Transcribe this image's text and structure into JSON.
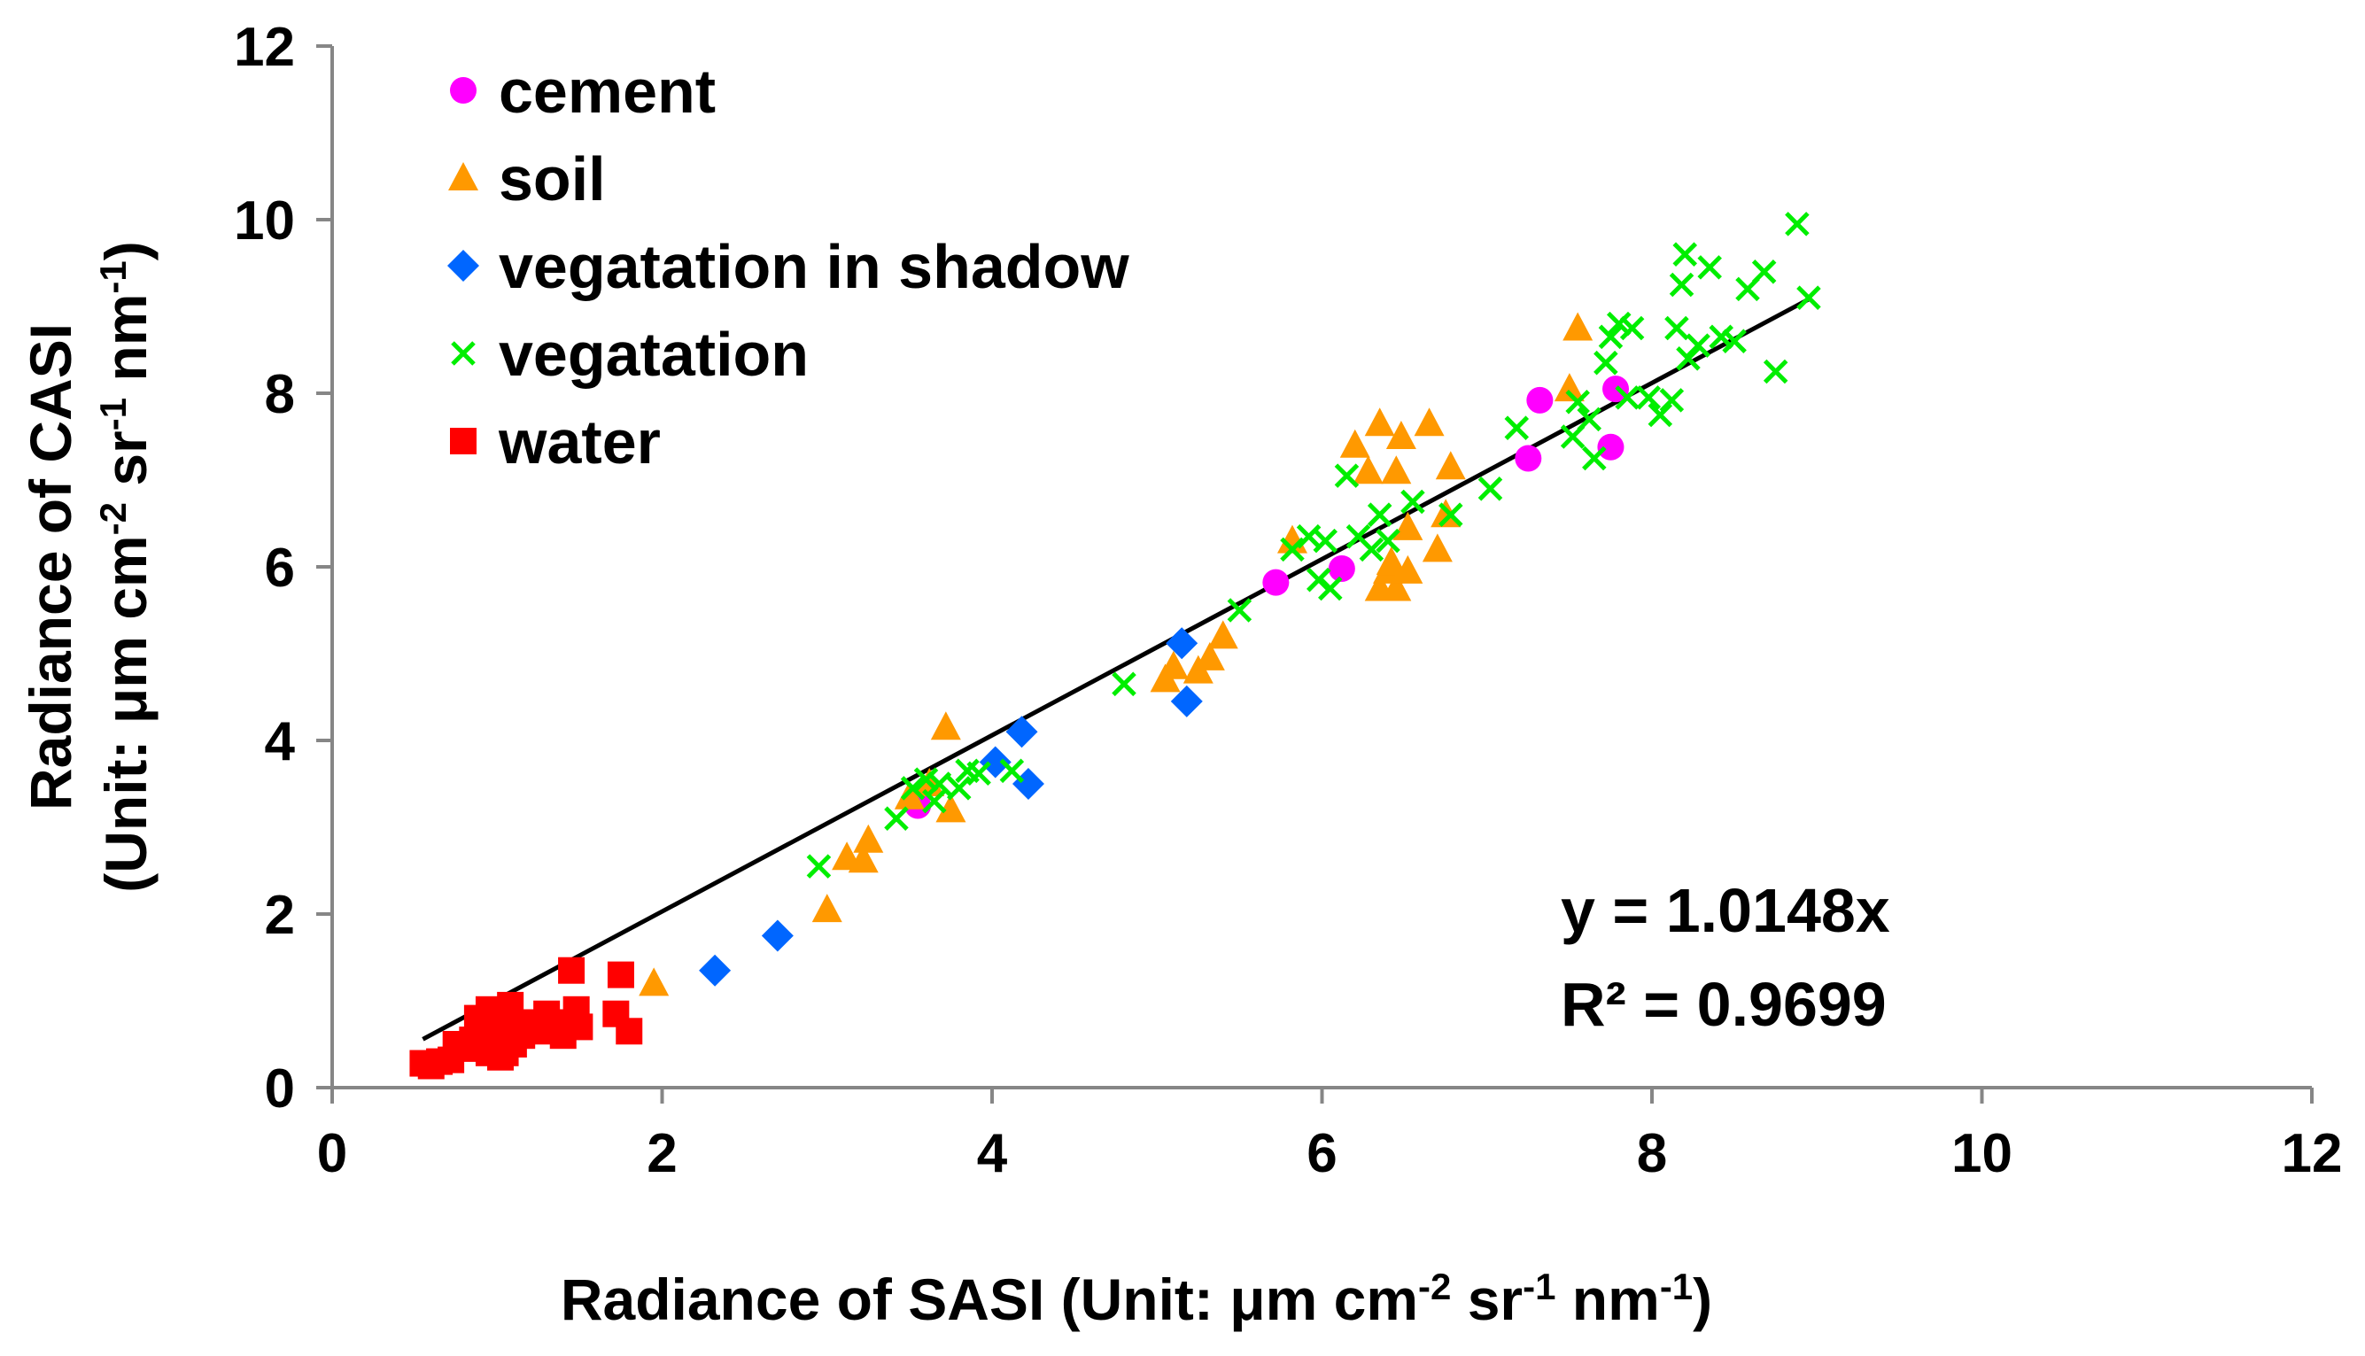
{
  "chart_data": {
    "type": "scatter",
    "title": "",
    "xlabel": {
      "base": "Radiance of SASI (Unit: μm cm",
      "sup1": "-2",
      "mid1": " sr",
      "sup2": "-1",
      "mid2": " nm",
      "sup3": "-1",
      "end": ")"
    },
    "ylabel": {
      "line1": {
        "base": "Radiance of CASI",
        "end": ""
      },
      "line2": {
        "base": "(Unit:  μm cm",
        "sup1": "-2",
        "mid1": " sr",
        "sup2": "-1",
        "mid2": " nm",
        "sup3": "-1",
        "end": ")"
      }
    },
    "xlim": [
      0,
      12
    ],
    "ylim": [
      0,
      12
    ],
    "xticks": [
      "0",
      "2",
      "4",
      "6",
      "8",
      "10",
      "12"
    ],
    "yticks": [
      "0",
      "2",
      "4",
      "6",
      "8",
      "10",
      "12"
    ],
    "legend_position": "top-left",
    "series": [
      {
        "name": "cement",
        "marker": "circle",
        "color": "#ff00ff",
        "points": [
          [
            3.55,
            3.25
          ],
          [
            5.72,
            5.82
          ],
          [
            6.12,
            5.98
          ],
          [
            7.25,
            7.25
          ],
          [
            7.32,
            7.92
          ],
          [
            7.75,
            7.38
          ],
          [
            7.78,
            8.05
          ]
        ]
      },
      {
        "name": "soil",
        "marker": "triangle",
        "color": "#ff9900",
        "points": [
          [
            1.95,
            1.2
          ],
          [
            3.0,
            2.05
          ],
          [
            3.12,
            2.65
          ],
          [
            3.22,
            2.62
          ],
          [
            3.25,
            2.85
          ],
          [
            3.5,
            3.35
          ],
          [
            3.62,
            3.5
          ],
          [
            3.72,
            4.15
          ],
          [
            3.75,
            3.2
          ],
          [
            5.05,
            4.7
          ],
          [
            5.1,
            4.85
          ],
          [
            5.25,
            4.8
          ],
          [
            5.32,
            4.95
          ],
          [
            5.4,
            5.2
          ],
          [
            5.82,
            6.3
          ],
          [
            6.2,
            7.4
          ],
          [
            6.28,
            7.1
          ],
          [
            6.35,
            7.65
          ],
          [
            6.35,
            5.75
          ],
          [
            6.4,
            5.95
          ],
          [
            6.42,
            6.05
          ],
          [
            6.45,
            5.75
          ],
          [
            6.48,
            7.5
          ],
          [
            6.52,
            6.45
          ],
          [
            6.52,
            5.95
          ],
          [
            6.65,
            7.65
          ],
          [
            6.7,
            6.2
          ],
          [
            6.75,
            6.6
          ],
          [
            6.78,
            7.15
          ],
          [
            6.45,
            7.1
          ],
          [
            7.5,
            8.05
          ],
          [
            7.55,
            8.75
          ]
        ]
      },
      {
        "name": "vegatation in shadow",
        "marker": "diamond",
        "color": "#0066ff",
        "points": [
          [
            2.32,
            1.35
          ],
          [
            2.7,
            1.75
          ],
          [
            4.02,
            3.75
          ],
          [
            4.18,
            4.1
          ],
          [
            4.22,
            3.5
          ],
          [
            5.15,
            5.12
          ],
          [
            5.18,
            4.45
          ]
        ]
      },
      {
        "name": "vegatation",
        "marker": "x",
        "color": "#00ee00",
        "points": [
          [
            2.95,
            2.55
          ],
          [
            3.42,
            3.1
          ],
          [
            3.52,
            3.45
          ],
          [
            3.6,
            3.55
          ],
          [
            3.65,
            3.3
          ],
          [
            3.68,
            3.5
          ],
          [
            3.8,
            3.45
          ],
          [
            3.85,
            3.65
          ],
          [
            3.92,
            3.62
          ],
          [
            4.12,
            3.65
          ],
          [
            4.8,
            4.65
          ],
          [
            5.5,
            5.5
          ],
          [
            5.82,
            6.2
          ],
          [
            5.92,
            6.35
          ],
          [
            5.98,
            5.85
          ],
          [
            6.02,
            6.3
          ],
          [
            6.05,
            5.75
          ],
          [
            6.15,
            7.05
          ],
          [
            6.22,
            6.35
          ],
          [
            6.3,
            6.2
          ],
          [
            6.35,
            6.6
          ],
          [
            6.4,
            6.3
          ],
          [
            6.55,
            6.75
          ],
          [
            6.78,
            6.6
          ],
          [
            7.02,
            6.9
          ],
          [
            7.18,
            7.6
          ],
          [
            7.52,
            7.5
          ],
          [
            7.55,
            7.9
          ],
          [
            7.62,
            7.7
          ],
          [
            7.65,
            7.25
          ],
          [
            7.72,
            8.35
          ],
          [
            7.75,
            8.65
          ],
          [
            7.8,
            8.8
          ],
          [
            7.85,
            7.95
          ],
          [
            7.88,
            8.75
          ],
          [
            7.98,
            7.95
          ],
          [
            8.05,
            7.75
          ],
          [
            8.12,
            7.92
          ],
          [
            8.15,
            8.75
          ],
          [
            8.18,
            9.25
          ],
          [
            8.2,
            9.6
          ],
          [
            8.22,
            8.4
          ],
          [
            8.28,
            8.55
          ],
          [
            8.35,
            9.45
          ],
          [
            8.42,
            8.65
          ],
          [
            8.5,
            8.6
          ],
          [
            8.58,
            9.2
          ],
          [
            8.68,
            9.4
          ],
          [
            8.75,
            8.25
          ],
          [
            8.88,
            9.95
          ],
          [
            8.95,
            9.1
          ]
        ]
      },
      {
        "name": "water",
        "marker": "square",
        "color": "#ff0000",
        "points": [
          [
            0.55,
            0.28
          ],
          [
            0.6,
            0.25
          ],
          [
            0.65,
            0.3
          ],
          [
            0.72,
            0.32
          ],
          [
            0.75,
            0.5
          ],
          [
            0.82,
            0.45
          ],
          [
            0.85,
            0.55
          ],
          [
            0.88,
            0.8
          ],
          [
            0.9,
            0.65
          ],
          [
            0.95,
            0.4
          ],
          [
            0.95,
            0.9
          ],
          [
            0.98,
            0.55
          ],
          [
            1.0,
            0.7
          ],
          [
            1.02,
            0.35
          ],
          [
            1.05,
            0.85
          ],
          [
            1.08,
            0.95
          ],
          [
            1.1,
            0.5
          ],
          [
            1.15,
            0.6
          ],
          [
            1.18,
            0.75
          ],
          [
            1.25,
            0.65
          ],
          [
            1.3,
            0.85
          ],
          [
            1.35,
            0.75
          ],
          [
            1.4,
            0.6
          ],
          [
            1.45,
            1.35
          ],
          [
            1.48,
            0.9
          ],
          [
            1.5,
            0.7
          ],
          [
            1.72,
            0.85
          ],
          [
            1.75,
            1.3
          ],
          [
            1.8,
            0.65
          ],
          [
            1.05,
            0.4
          ]
        ]
      }
    ],
    "trendline": {
      "slope": 1.0148,
      "x_from": 0.55,
      "x_to": 8.95,
      "color": "#000000"
    },
    "annotations": {
      "equation": "y = 1.0148x",
      "r_squared": "R² = 0.9699"
    }
  }
}
